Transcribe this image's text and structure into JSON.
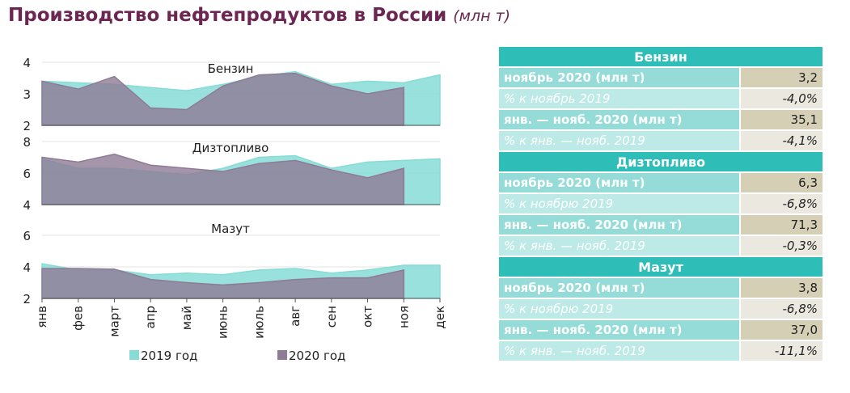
{
  "title": {
    "main": "Производство нефтепродуктов в России",
    "unit": "(млн т)"
  },
  "colors": {
    "series_2019": "#87dcd6",
    "series_2020": "#8e7b95",
    "header": "#2fbdb7",
    "title": "#6b2752"
  },
  "chart_data": {
    "type": "area",
    "categories": [
      "янв",
      "фев",
      "март",
      "апр",
      "май",
      "июнь",
      "июль",
      "авг",
      "сен",
      "окт",
      "ноя",
      "дек"
    ],
    "legend": {
      "placement": "bottom",
      "entries": [
        "2019 год",
        "2020 год"
      ]
    },
    "panels": [
      {
        "title": "Бензин",
        "ylim": [
          2,
          4
        ],
        "yticks": [
          "2",
          "3",
          "4"
        ],
        "series": [
          {
            "name": "2019 год",
            "values": [
              3.4,
              3.35,
              3.3,
              3.2,
              3.1,
              3.3,
              3.55,
              3.7,
              3.3,
              3.4,
              3.35,
              3.6
            ]
          },
          {
            "name": "2020 год",
            "values": [
              3.4,
              3.15,
              3.55,
              2.55,
              2.5,
              3.25,
              3.6,
              3.65,
              3.25,
              3.0,
              3.2
            ]
          }
        ]
      },
      {
        "title": "Дизтопливо",
        "ylim": [
          4,
          8
        ],
        "yticks": [
          "4",
          "6",
          "8"
        ],
        "series": [
          {
            "name": "2019 год",
            "values": [
              6.9,
              6.3,
              6.3,
              6.1,
              5.9,
              6.3,
              7.0,
              7.1,
              6.3,
              6.7,
              6.8,
              6.9
            ]
          },
          {
            "name": "2020 год",
            "values": [
              7.0,
              6.7,
              7.2,
              6.5,
              6.3,
              6.1,
              6.6,
              6.8,
              6.2,
              5.7,
              6.3
            ]
          }
        ]
      },
      {
        "title": "Мазут",
        "ylim": [
          2,
          6
        ],
        "yticks": [
          "2",
          "4",
          "6"
        ],
        "series": [
          {
            "name": "2019 год",
            "values": [
              4.2,
              3.8,
              3.8,
              3.5,
              3.6,
              3.5,
              3.8,
              3.9,
              3.6,
              3.8,
              4.1,
              4.1
            ]
          },
          {
            "name": "2020 год",
            "values": [
              3.9,
              3.9,
              3.85,
              3.2,
              3.0,
              2.85,
              3.0,
              3.2,
              3.3,
              3.3,
              3.8
            ]
          }
        ]
      }
    ]
  },
  "table": [
    {
      "header": "Бензин",
      "rows": [
        {
          "label": "ноябрь 2020 (млн т)",
          "value": "3,2",
          "kind": "main"
        },
        {
          "label": "% к ноябрь 2019",
          "value": "-4,0%",
          "kind": "sub"
        },
        {
          "label": "янв. — нояб. 2020 (млн т)",
          "value": "35,1",
          "kind": "main"
        },
        {
          "label": "% к янв. — нояб. 2019",
          "value": "-4,1%",
          "kind": "sub"
        }
      ]
    },
    {
      "header": "Дизтопливо",
      "rows": [
        {
          "label": "ноябрь 2020 (млн т)",
          "value": "6,3",
          "kind": "main"
        },
        {
          "label": "% к ноябрю 2019",
          "value": "-6,8%",
          "kind": "sub"
        },
        {
          "label": "янв. — нояб. 2020 (млн т)",
          "value": "71,3",
          "kind": "main"
        },
        {
          "label": "% к янв. — нояб. 2019",
          "value": "-0,3%",
          "kind": "sub"
        }
      ]
    },
    {
      "header": "Мазут",
      "rows": [
        {
          "label": "ноябрь 2020 (млн т)",
          "value": "3,8",
          "kind": "main"
        },
        {
          "label": "% к ноябрю 2019",
          "value": "-6,8%",
          "kind": "sub"
        },
        {
          "label": "янв. — нояб. 2020 (млн т)",
          "value": "37,0",
          "kind": "main"
        },
        {
          "label": "% к янв. — нояб. 2019",
          "value": "-11,1%",
          "kind": "sub"
        }
      ]
    }
  ]
}
